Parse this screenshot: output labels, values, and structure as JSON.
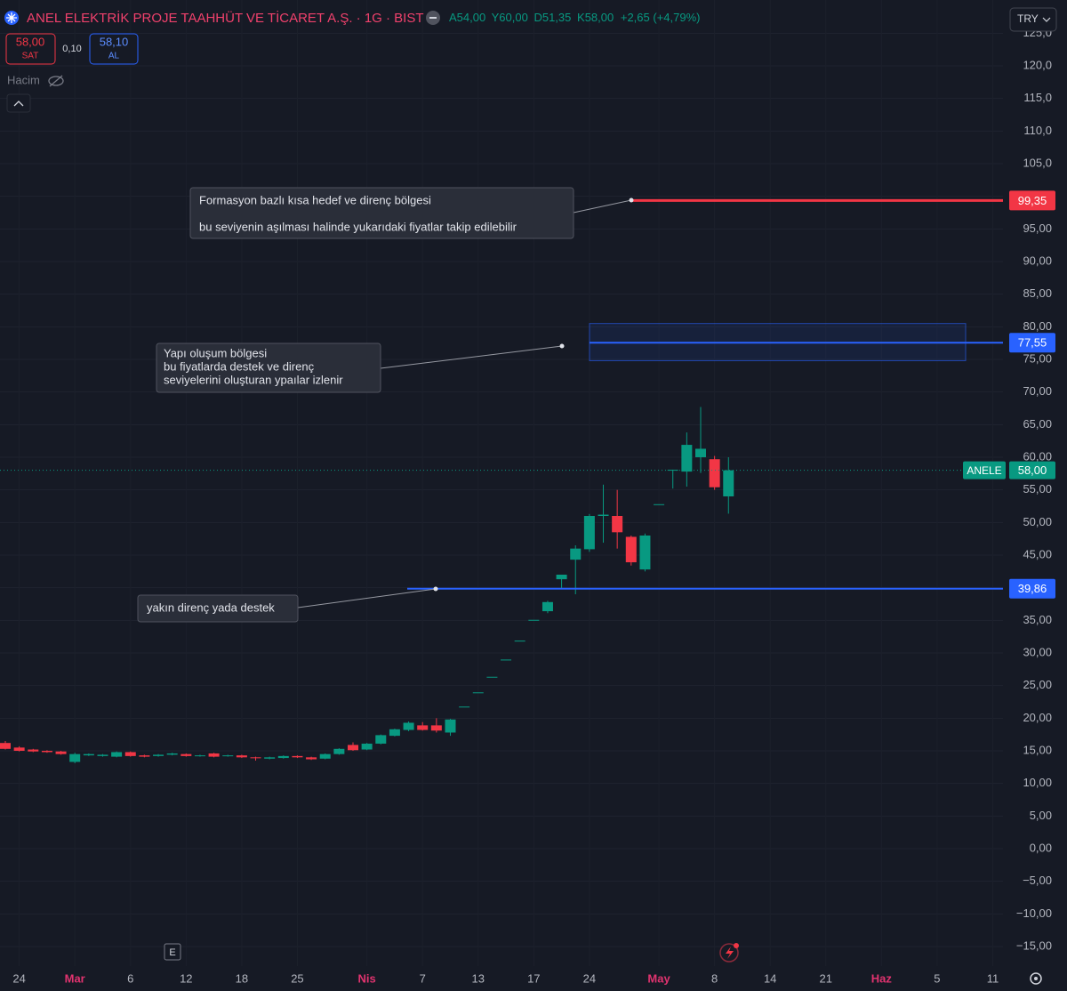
{
  "header": {
    "title": "ANEL ELEKTRİK PROJE TAAHHÜT VE TİCARET A.Ş. · 1G · BIST",
    "ohlc": [
      {
        "label": "A",
        "value": "54,00"
      },
      {
        "label": "Y",
        "value": "60,00"
      },
      {
        "label": "D",
        "value": "51,35"
      },
      {
        "label": "K",
        "value": "58,00"
      }
    ],
    "change": "+2,65 (+4,79%)",
    "sell": {
      "price": "58,00",
      "label": "SAT"
    },
    "spread": "0,10",
    "buy": {
      "price": "58,10",
      "label": "AL"
    },
    "volume_label": "Hacim",
    "currency": "TRY",
    "events_button": "E"
  },
  "annotations": [
    {
      "lines": [
        "Formasyon bazlı kısa hedef ve direnç bölgesi",
        "bu seviyenin aşılması halinde yukarıdaki fiyatlar takip edilebilir"
      ]
    },
    {
      "lines": [
        "Yapı oluşum bölgesi",
        "bu fiyatlarda destek ve direnç",
        "seviyelerini oluşturan ypaılar izlenir"
      ]
    },
    {
      "lines": [
        "yakın direnç yada destek"
      ]
    }
  ],
  "chart_data": {
    "type": "candlestick",
    "up_color": "#089981",
    "down_color": "#f23645",
    "grid": true,
    "categories": [
      null,
      "24",
      null,
      null,
      null,
      "Mar",
      null,
      null,
      null,
      "6",
      null,
      null,
      null,
      "12",
      null,
      null,
      null,
      "18",
      null,
      null,
      null,
      "25",
      null,
      null,
      null,
      null,
      "Nis",
      null,
      null,
      null,
      "7",
      null,
      null,
      null,
      "13",
      null,
      null,
      null,
      "17",
      null,
      null,
      null,
      "24",
      null,
      null,
      null,
      null,
      "May",
      null,
      null,
      null,
      "8",
      null,
      null,
      null,
      "14",
      null,
      null,
      null,
      "21",
      null,
      null,
      null,
      "Haz",
      null,
      null,
      null,
      "5",
      null,
      null,
      null,
      "11"
    ],
    "open": [
      16.2,
      15.5,
      15.2,
      15.0,
      14.9,
      13.3,
      14.3,
      14.2,
      14.1,
      14.8,
      14.3,
      14.2,
      14.4,
      14.5,
      14.2,
      14.6,
      14.2,
      14.3,
      14.0,
      13.8,
      13.9,
      14.2,
      14.0,
      13.8,
      14.5,
      15.9,
      15.2,
      16.1,
      17.3,
      18.2,
      18.9,
      18.9,
      17.8,
      21.78,
      23.96,
      26.35,
      28.99,
      31.89,
      35.08,
      36.4,
      41.3,
      44.3,
      45.9,
      51.0,
      51.0,
      47.8,
      42.8,
      52.8,
      58.08,
      57.8,
      60.0,
      59.7,
      54.0,
      null,
      null,
      null,
      null,
      null,
      null,
      null,
      null,
      null,
      null,
      null,
      null,
      null,
      null,
      null,
      null,
      null,
      null,
      null
    ],
    "high": [
      16.5,
      15.7,
      15.3,
      15.1,
      15.0,
      14.7,
      14.6,
      14.5,
      14.9,
      14.9,
      14.4,
      14.5,
      14.7,
      14.6,
      14.4,
      14.7,
      14.4,
      14.4,
      14.1,
      14.1,
      14.3,
      14.3,
      14.1,
      14.6,
      15.4,
      16.3,
      16.2,
      17.5,
      18.4,
      19.5,
      19.4,
      20.0,
      19.9,
      21.78,
      23.96,
      26.35,
      28.99,
      31.89,
      35.08,
      38.0,
      42.0,
      46.5,
      51.3,
      55.8,
      55.0,
      48.0,
      48.3,
      52.8,
      58.1,
      63.8,
      67.7,
      60.2,
      60.0,
      null,
      null,
      null,
      null,
      null,
      null,
      null,
      null,
      null,
      null,
      null,
      null,
      null,
      null,
      null,
      null,
      null,
      null,
      null
    ],
    "low": [
      15.2,
      14.9,
      14.8,
      14.7,
      14.4,
      13.1,
      14.2,
      14.1,
      14.0,
      14.1,
      14.0,
      14.1,
      14.3,
      14.1,
      14.1,
      14.0,
      14.1,
      13.9,
      13.5,
      13.7,
      13.8,
      13.9,
      13.6,
      13.7,
      14.4,
      15.0,
      15.1,
      16.0,
      17.2,
      18.0,
      18.1,
      17.8,
      17.3,
      21.78,
      23.96,
      26.35,
      28.99,
      31.89,
      35.08,
      36.1,
      39.8,
      39.0,
      45.5,
      46.9,
      46.0,
      43.4,
      42.5,
      52.8,
      55.2,
      55.5,
      57.6,
      55.0,
      51.35,
      null,
      null,
      null,
      null,
      null,
      null,
      null,
      null,
      null,
      null,
      null,
      null,
      null,
      null,
      null,
      null,
      null,
      null,
      null
    ],
    "close": [
      15.3,
      15.0,
      14.9,
      14.8,
      14.5,
      14.5,
      14.5,
      14.4,
      14.8,
      14.2,
      14.1,
      14.4,
      14.6,
      14.2,
      14.3,
      14.1,
      14.3,
      14.0,
      13.9,
      14.0,
      14.2,
      14.0,
      13.7,
      14.5,
      15.3,
      15.1,
      16.1,
      17.4,
      18.3,
      19.3,
      18.2,
      18.1,
      19.8,
      21.78,
      23.96,
      26.35,
      28.99,
      31.89,
      35.08,
      37.8,
      42.0,
      46.0,
      51.0,
      51.2,
      48.5,
      43.9,
      48.0,
      52.8,
      58.08,
      61.9,
      61.3,
      55.4,
      58.0,
      null,
      null,
      null,
      null,
      null,
      null,
      null,
      null,
      null,
      null,
      null,
      null,
      null,
      null,
      null,
      null,
      null,
      null,
      null
    ],
    "ylim": [
      -18,
      130.09
    ],
    "yticks": [
      {
        "value": -15,
        "label": "−15,00"
      },
      {
        "value": -10,
        "label": "−10,00"
      },
      {
        "value": -5,
        "label": "−5,00"
      },
      {
        "value": 0,
        "label": "0,00"
      },
      {
        "value": 5,
        "label": "5,00"
      },
      {
        "value": 10,
        "label": "10,00"
      },
      {
        "value": 15,
        "label": "15,00"
      },
      {
        "value": 20,
        "label": "20,00"
      },
      {
        "value": 25,
        "label": "25,00"
      },
      {
        "value": 30,
        "label": "30,00"
      },
      {
        "value": 35,
        "label": "35,00"
      },
      {
        "value": 40,
        "label": "40,00"
      },
      {
        "value": 45,
        "label": "45,00"
      },
      {
        "value": 50,
        "label": "50,00"
      },
      {
        "value": 55,
        "label": "55,00"
      },
      {
        "value": 60,
        "label": "60,00"
      },
      {
        "value": 65,
        "label": "65,00"
      },
      {
        "value": 70,
        "label": "70,00"
      },
      {
        "value": 75,
        "label": "75,00"
      },
      {
        "value": 80,
        "label": "80,00"
      },
      {
        "value": 85,
        "label": "85,00"
      },
      {
        "value": 90,
        "label": "90,00"
      },
      {
        "value": 95,
        "label": "95,00"
      },
      {
        "value": 100,
        "label": "100,0"
      },
      {
        "value": 105,
        "label": "105,0"
      },
      {
        "value": 110,
        "label": "110,0"
      },
      {
        "value": 115,
        "label": "115,0"
      },
      {
        "value": 120,
        "label": "120,0"
      },
      {
        "value": 125,
        "label": "125,0"
      }
    ],
    "levels": {
      "values": [
        99.35,
        77.55,
        39.86
      ],
      "value_labels": [
        "99,35",
        "77,55",
        "39,86"
      ],
      "colors": [
        "#f23645",
        "#2962ff",
        "#2962ff"
      ]
    },
    "zone": [
      74.8,
      80.5
    ],
    "zone_color": "#2962ff",
    "last_price": {
      "symbol": "ANELE",
      "value": 58,
      "value_label": "58,00",
      "color": "#089981"
    }
  }
}
